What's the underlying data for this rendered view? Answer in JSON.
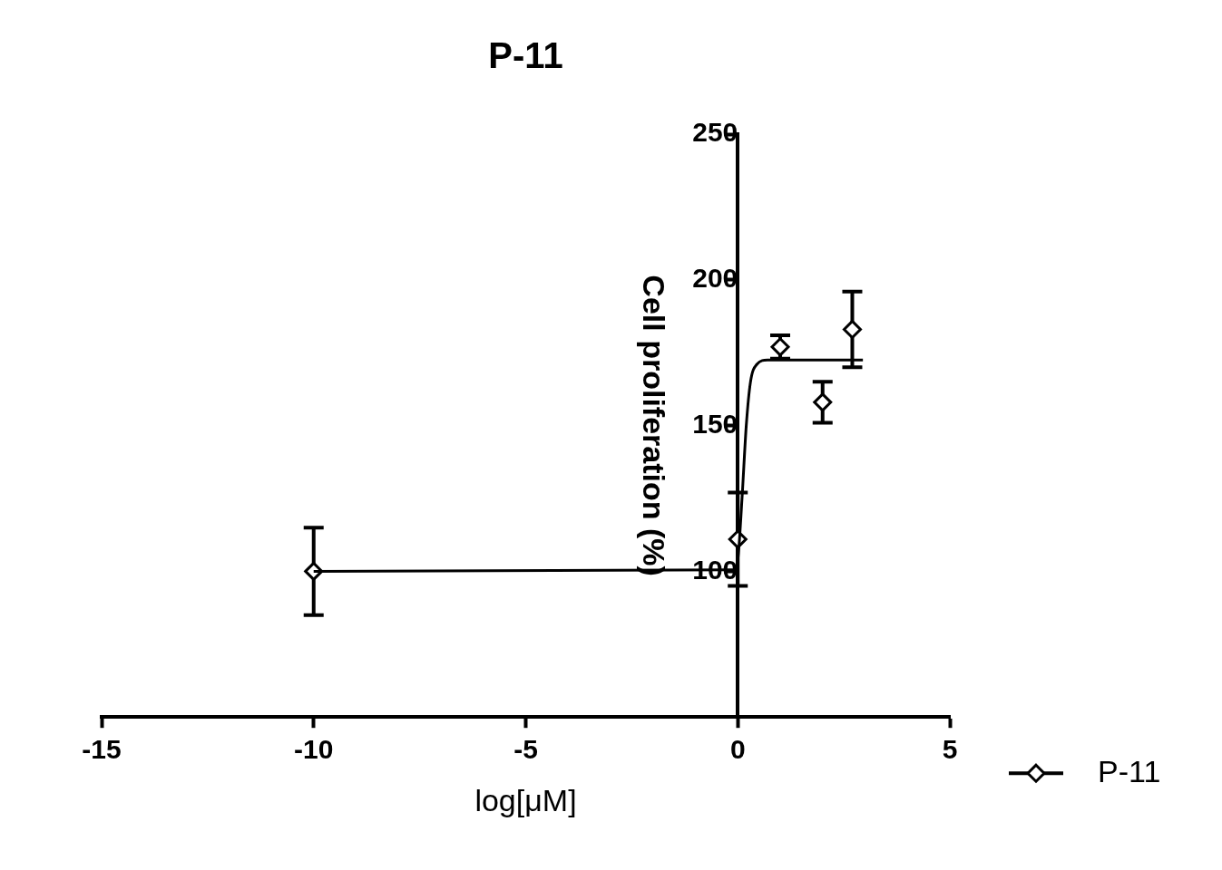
{
  "chart_data": {
    "type": "scatter",
    "title": "P-11",
    "x_label": "log[μM]",
    "y_label": "Cell proliferation (%)",
    "xlim": [
      -15,
      5
    ],
    "xticks": [
      -15,
      -10,
      -5,
      0,
      5
    ],
    "ylim": [
      50,
      250
    ],
    "yticks": [
      100,
      150,
      200,
      250
    ],
    "grid": false,
    "legend": "right",
    "series": [
      {
        "name": "P-11",
        "color": "#000000",
        "marker": "diamond",
        "x": [
          -10,
          0,
          1,
          2,
          2.7
        ],
        "values": [
          100,
          111,
          177,
          158,
          183
        ],
        "errors": [
          15,
          16,
          4,
          7,
          13
        ],
        "fit": {
          "x": [
            -10,
            -0.1,
            0,
            0.1,
            0.2,
            0.3,
            0.45,
            0.7,
            2.95
          ],
          "values": [
            100,
            100.5,
            104,
            125,
            150,
            165,
            171,
            172.5,
            172.5
          ]
        }
      }
    ]
  }
}
